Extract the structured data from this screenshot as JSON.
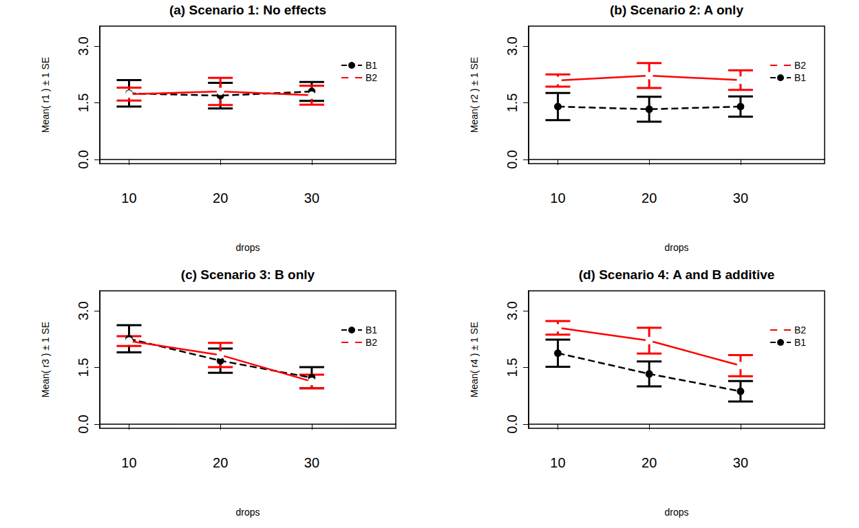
{
  "chart_data": [
    {
      "type": "line",
      "title": "(a) Scenario 1: No effects",
      "x_label": "drops",
      "y_label": "Mean( r1 ) ± 1 SE",
      "x": [
        10,
        20,
        30
      ],
      "xlim": [
        6.8,
        39.2
      ],
      "xticks": [
        10,
        20,
        30
      ],
      "ylim": [
        -0.11,
        3.53
      ],
      "yticks": [
        {
          "value": 0,
          "label": "0.0"
        },
        {
          "value": 1.5,
          "label": "1.5"
        },
        {
          "value": 3,
          "label": "3.0"
        }
      ],
      "grid": false,
      "legend": "top-right",
      "series": [
        {
          "name": "B1",
          "color": "#000000",
          "line_style": "dashed",
          "marker": "filled_circle",
          "values": [
            1.75,
            1.69,
            1.8
          ],
          "se": [
            0.35,
            0.34,
            0.25
          ]
        },
        {
          "name": "B2",
          "color": "#ff0000",
          "line_style": "solid",
          "marker": "open_circle",
          "values": [
            1.73,
            1.8,
            1.7
          ],
          "se": [
            0.17,
            0.36,
            0.25
          ]
        }
      ]
    },
    {
      "type": "line",
      "title": "(b) Scenario 2: A only",
      "x_label": "drops",
      "y_label": "Mean( r2 ) ± 1 SE",
      "x": [
        10,
        20,
        30
      ],
      "xlim": [
        6.8,
        39.2
      ],
      "xticks": [
        10,
        20,
        30
      ],
      "ylim": [
        -0.11,
        3.53
      ],
      "yticks": [
        {
          "value": 0,
          "label": "0.0"
        },
        {
          "value": 1.5,
          "label": "1.5"
        },
        {
          "value": 3,
          "label": "3.0"
        }
      ],
      "grid": false,
      "legend": "top-right",
      "series": [
        {
          "name": "B2",
          "color": "#ff0000",
          "line_style": "solid",
          "marker": "open_circle",
          "values": [
            2.09,
            2.22,
            2.1
          ],
          "se": [
            0.16,
            0.33,
            0.26
          ]
        },
        {
          "name": "B1",
          "color": "#000000",
          "line_style": "dashed",
          "marker": "filled_circle",
          "values": [
            1.4,
            1.33,
            1.4
          ],
          "se": [
            0.36,
            0.33,
            0.27
          ]
        }
      ]
    },
    {
      "type": "line",
      "title": "(c) Scenario 3: B only",
      "x_label": "drops",
      "y_label": "Mean( r3 ) ± 1 SE",
      "x": [
        10,
        20,
        30
      ],
      "xlim": [
        6.8,
        39.2
      ],
      "xticks": [
        10,
        20,
        30
      ],
      "ylim": [
        -0.11,
        3.53
      ],
      "yticks": [
        {
          "value": 0,
          "label": "0.0"
        },
        {
          "value": 1.5,
          "label": "1.5"
        },
        {
          "value": 3,
          "label": "3.0"
        }
      ],
      "grid": false,
      "legend": "top-right",
      "series": [
        {
          "name": "B1",
          "color": "#000000",
          "line_style": "dashed",
          "marker": "filled_circle",
          "values": [
            2.26,
            1.68,
            1.23
          ],
          "se": [
            0.36,
            0.32,
            0.28
          ]
        },
        {
          "name": "B2",
          "color": "#ff0000",
          "line_style": "solid",
          "marker": "open_circle",
          "values": [
            2.2,
            1.83,
            1.13
          ],
          "se": [
            0.13,
            0.32,
            0.18
          ]
        }
      ]
    },
    {
      "type": "line",
      "title": "(d) Scenario 4: A and B additive",
      "x_label": "drops",
      "y_label": "Mean( r4 ) ± 1 SE",
      "x": [
        10,
        20,
        30
      ],
      "xlim": [
        6.8,
        39.2
      ],
      "xticks": [
        10,
        20,
        30
      ],
      "ylim": [
        -0.11,
        3.53
      ],
      "yticks": [
        {
          "value": 0,
          "label": "0.0"
        },
        {
          "value": 1.5,
          "label": "1.5"
        },
        {
          "value": 3,
          "label": "3.0"
        }
      ],
      "grid": false,
      "legend": "top-right",
      "series": [
        {
          "name": "B2",
          "color": "#ff0000",
          "line_style": "solid",
          "marker": "open_circle",
          "values": [
            2.55,
            2.21,
            1.55
          ],
          "se": [
            0.18,
            0.34,
            0.28
          ]
        },
        {
          "name": "B1",
          "color": "#000000",
          "line_style": "dashed",
          "marker": "filled_circle",
          "values": [
            1.88,
            1.33,
            0.87
          ],
          "se": [
            0.36,
            0.33,
            0.27
          ]
        }
      ]
    }
  ]
}
